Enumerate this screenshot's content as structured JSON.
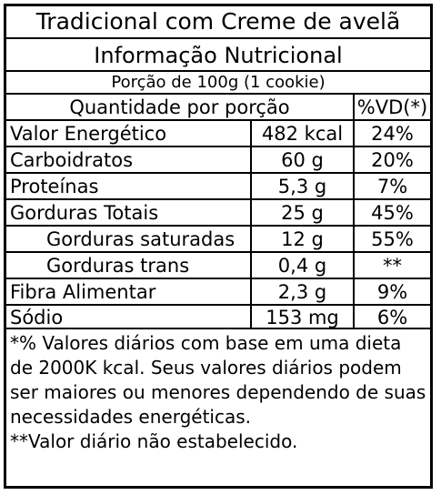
{
  "title": "Tradicional com Creme de avelã",
  "subtitle": "Informação Nutricional",
  "portion": "Porção de 100g (1 cookie)",
  "header": {
    "quantity_label": "Quantidade por porção",
    "vd_label": "%VD(*)"
  },
  "rows": [
    {
      "nutrient": "Valor Energético",
      "amount": "482 kcal",
      "vd": "24%"
    },
    {
      "nutrient": "Carboidratos",
      "amount": "60 g",
      "vd": "20%"
    },
    {
      "nutrient": "Proteínas",
      "amount": "5,3 g",
      "vd": "7%"
    },
    {
      "nutrient": "Gorduras Totais",
      "amount": "25 g",
      "vd": "45%"
    },
    {
      "nutrient": "Gorduras saturadas",
      "amount": "12 g",
      "vd": "55%"
    },
    {
      "nutrient": "Gorduras trans",
      "amount": "0,4 g",
      "vd": "**"
    },
    {
      "nutrient": "Fibra Alimentar",
      "amount": "2,3 g",
      "vd": "9%"
    },
    {
      "nutrient": "Sódio",
      "amount": "153 mg",
      "vd": "6%"
    }
  ],
  "footnotes": [
    "*% Valores diários com base em uma dieta de 2000K kcal. Seus valores diários podem ser maiores ou menores dependendo de suas necessidades energéticas.",
    "**Valor diário não estabelecido."
  ]
}
